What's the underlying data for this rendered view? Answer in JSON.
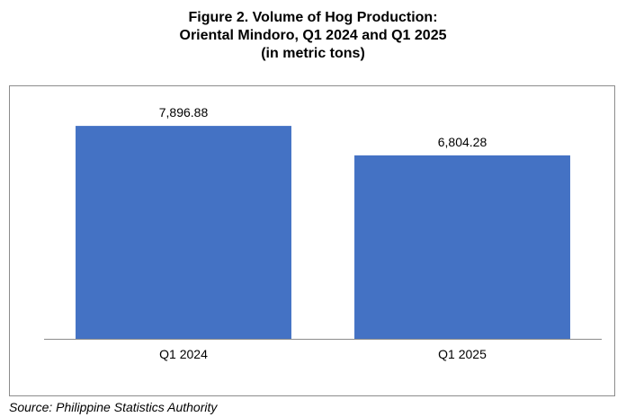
{
  "title": {
    "line1": "Figure 2. Volume of Hog Production:",
    "line2": "Oriental Mindoro, Q1 2024 and Q1 2025",
    "line3": "(in metric tons)"
  },
  "source": "Source: Philippine Statistics Authority",
  "chart_data": {
    "type": "bar",
    "title": "Figure 2. Volume of Hog Production: Oriental Mindoro, Q1 2024 and Q1 2025 (in metric tons)",
    "categories": [
      "Q1 2024",
      "Q1 2025"
    ],
    "values": [
      7896.88,
      6804.28
    ],
    "data_labels": [
      "7,896.88",
      "6,804.28"
    ],
    "xlabel": "",
    "ylabel": "",
    "ylim": [
      0,
      9000
    ],
    "grid": false,
    "legend": "none",
    "bar_color": "#4472C4",
    "axis_color": "#8c8c8c"
  }
}
